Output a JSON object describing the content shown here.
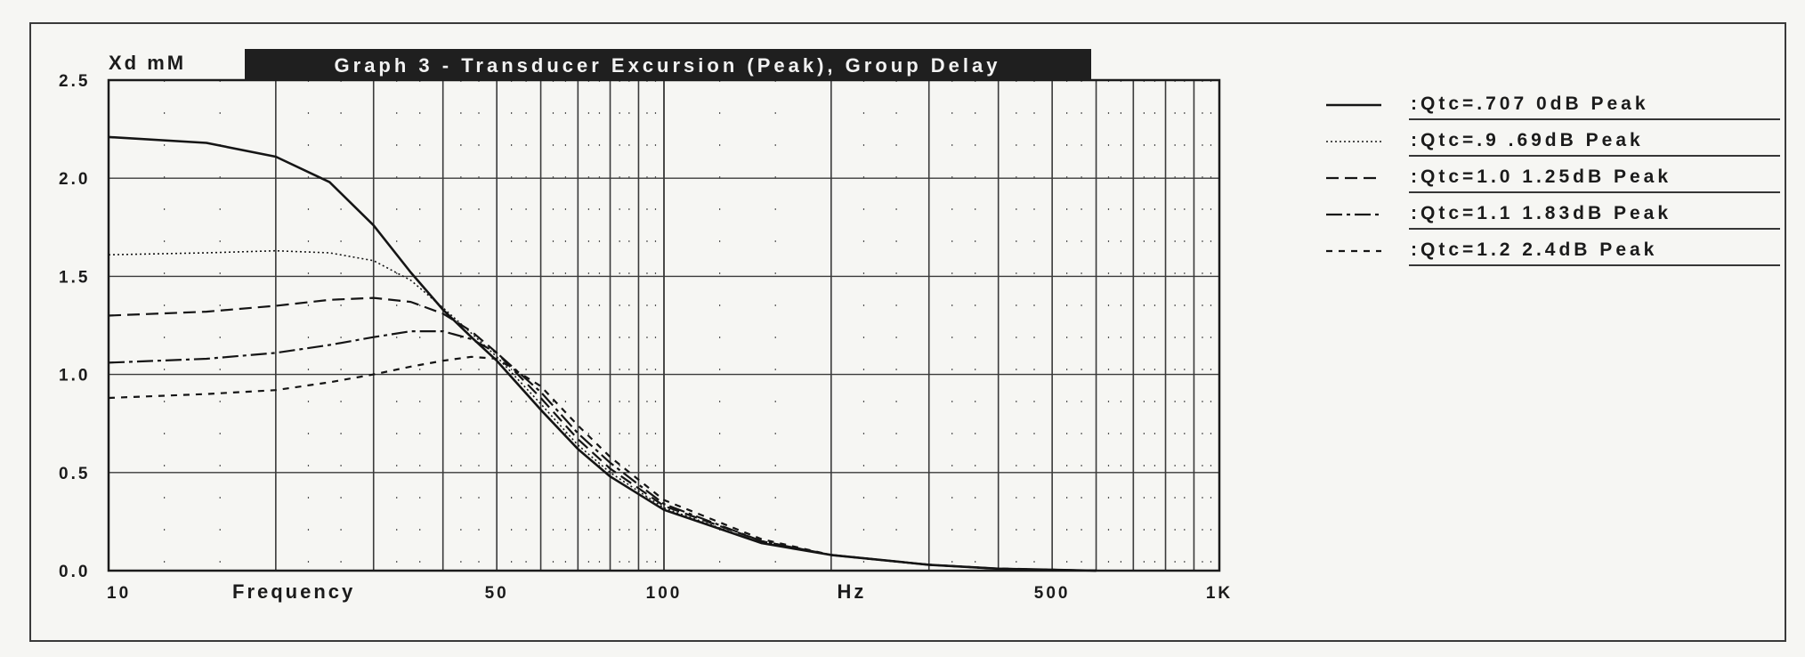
{
  "chart_data": {
    "type": "line",
    "title": "Graph 3 - Transducer Excursion (Peak), Group Delay",
    "ylabel": "Xd mM",
    "xlabel": "Frequency",
    "x_unit_label": "Hz",
    "x_scale": "log",
    "xlim": [
      10,
      1000
    ],
    "ylim": [
      0,
      2.5
    ],
    "grid": true,
    "legend_position": "right",
    "x_ticks": [
      {
        "value": 10,
        "label": "10"
      },
      {
        "value": 50,
        "label": "50"
      },
      {
        "value": 100,
        "label": "100"
      },
      {
        "value": 500,
        "label": "500"
      },
      {
        "value": 1000,
        "label": "1K"
      }
    ],
    "y_ticks": [
      {
        "value": 0,
        "label": "0.0"
      },
      {
        "value": 0.5,
        "label": "0.5"
      },
      {
        "value": 1.0,
        "label": "1.0"
      },
      {
        "value": 1.5,
        "label": "1.5"
      },
      {
        "value": 2.0,
        "label": "2.0"
      },
      {
        "value": 2.5,
        "label": "2.5"
      }
    ],
    "series": [
      {
        "name": ":Qtc=.707 0dB Peak",
        "style": "solid",
        "x": [
          10,
          15,
          20,
          25,
          30,
          35,
          40,
          45,
          50,
          60,
          70,
          80,
          100,
          150,
          200,
          300,
          400,
          600
        ],
        "y": [
          2.21,
          2.18,
          2.11,
          1.98,
          1.76,
          1.52,
          1.33,
          1.19,
          1.07,
          0.82,
          0.62,
          0.48,
          0.31,
          0.14,
          0.08,
          0.03,
          0.01,
          0.0
        ]
      },
      {
        "name": ":Qtc=.9 .69dB Peak",
        "style": "dotted",
        "x": [
          10,
          15,
          20,
          25,
          30,
          35,
          40,
          45,
          50,
          60,
          70,
          80,
          100,
          150,
          200,
          300,
          400,
          600
        ],
        "y": [
          1.61,
          1.62,
          1.63,
          1.62,
          1.58,
          1.48,
          1.34,
          1.21,
          1.09,
          0.85,
          0.64,
          0.5,
          0.32,
          0.14,
          0.08,
          0.03,
          0.01,
          0.0
        ]
      },
      {
        "name": ":Qtc=1.0 1.25dB Peak",
        "style": "dashed",
        "x": [
          10,
          15,
          20,
          25,
          30,
          35,
          40,
          45,
          50,
          60,
          70,
          80,
          100,
          150,
          200,
          300,
          400,
          600
        ],
        "y": [
          1.3,
          1.32,
          1.35,
          1.38,
          1.39,
          1.37,
          1.31,
          1.22,
          1.11,
          0.88,
          0.67,
          0.52,
          0.33,
          0.15,
          0.08,
          0.03,
          0.01,
          0.0
        ]
      },
      {
        "name": ":Qtc=1.1 1.83dB Peak",
        "style": "dash-dot",
        "x": [
          10,
          15,
          20,
          25,
          30,
          35,
          40,
          45,
          50,
          60,
          70,
          80,
          100,
          150,
          200,
          300,
          400,
          600
        ],
        "y": [
          1.06,
          1.08,
          1.11,
          1.15,
          1.19,
          1.22,
          1.22,
          1.18,
          1.11,
          0.91,
          0.7,
          0.55,
          0.34,
          0.15,
          0.08,
          0.03,
          0.01,
          0.0
        ]
      },
      {
        "name": ":Qtc=1.2 2.4dB Peak",
        "style": "short-dash",
        "x": [
          10,
          15,
          20,
          25,
          30,
          35,
          40,
          45,
          50,
          60,
          70,
          80,
          100,
          150,
          200,
          300,
          400,
          600
        ],
        "y": [
          0.88,
          0.9,
          0.92,
          0.96,
          1.0,
          1.04,
          1.07,
          1.09,
          1.08,
          0.94,
          0.74,
          0.58,
          0.36,
          0.16,
          0.08,
          0.03,
          0.01,
          0.0
        ]
      }
    ]
  }
}
